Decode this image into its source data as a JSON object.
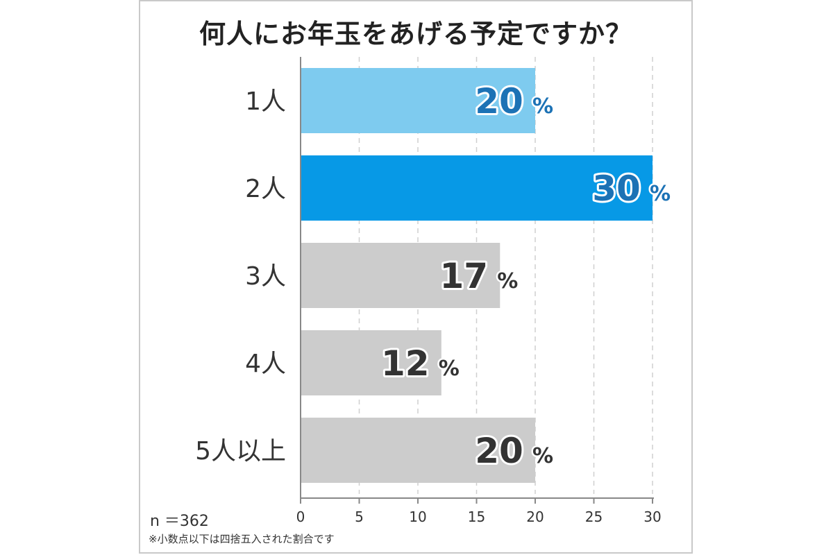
{
  "title": "何人にお年玉をあげる予定ですか？",
  "sample_size": "n ＝362",
  "footnote": "※小数点以下は四捨五入された割合です",
  "colors": {
    "highlight_light": "#7ecbef",
    "highlight": "#0799e6",
    "neutral": "#cccccc",
    "label_blue": "#1c72b5",
    "label_dark": "#333333",
    "grid": "#cfcfcf",
    "axis": "#888888"
  },
  "chart_data": {
    "type": "bar",
    "orientation": "horizontal",
    "categories": [
      "1人",
      "2人",
      "3人",
      "4人",
      "5人以上"
    ],
    "values": [
      20,
      30,
      17,
      12,
      20
    ],
    "value_labels": [
      "20",
      "30",
      "17",
      "12",
      "20"
    ],
    "unit": "%",
    "bar_colors": [
      "#7ecbef",
      "#0799e6",
      "#cccccc",
      "#cccccc",
      "#cccccc"
    ],
    "value_label_colors": [
      "#1c72b5",
      "#1c72b5",
      "#333333",
      "#333333",
      "#333333"
    ],
    "xlim": [
      0,
      30
    ],
    "xticks": [
      0,
      5,
      10,
      15,
      20,
      25,
      30
    ],
    "grid": true,
    "legend": "none"
  }
}
